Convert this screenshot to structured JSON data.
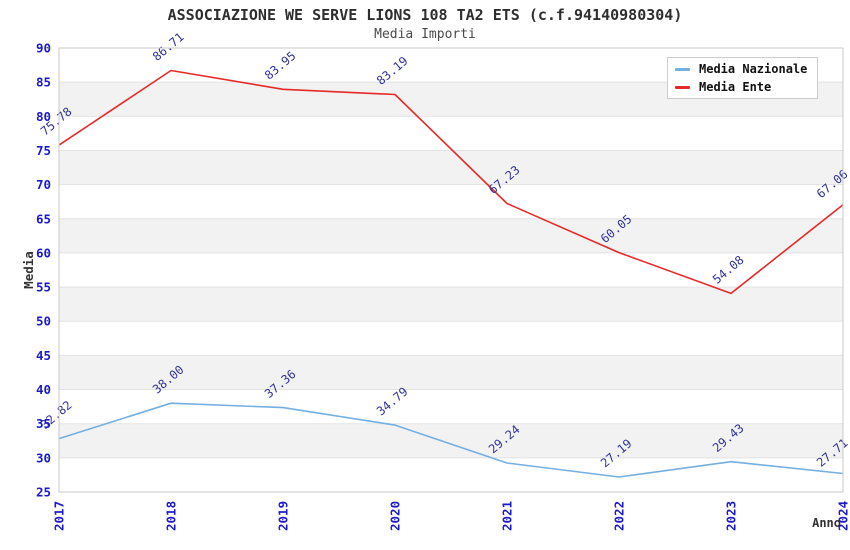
{
  "chart_data": {
    "type": "line",
    "title": "ASSOCIAZIONE WE SERVE LIONS 108 TA2 ETS (c.f.94140980304)",
    "subtitle": "Media Importi",
    "xlabel": "Anno",
    "ylabel": "Media",
    "categories": [
      "2017",
      "2018",
      "2019",
      "2020",
      "2021",
      "2022",
      "2023",
      "2024"
    ],
    "series": [
      {
        "name": "Media Nazionale",
        "color": "#74afe2",
        "values": [
          32.82,
          38.0,
          37.36,
          34.79,
          29.24,
          27.19,
          29.43,
          27.71
        ]
      },
      {
        "name": "Media Ente",
        "color": "#e62929",
        "values": [
          75.78,
          86.71,
          83.95,
          83.19,
          67.23,
          60.05,
          54.08,
          67.06
        ]
      }
    ],
    "ylim": [
      25,
      90
    ],
    "ytick_step": 5,
    "yticks": [
      90,
      85,
      80,
      75,
      70,
      65,
      60,
      55,
      50,
      45,
      40,
      35,
      30,
      25
    ],
    "value_decimals": 2,
    "grid": true,
    "legend_position": "top-right",
    "band_fill": "#f2f2f2",
    "gridline_color": "#e3e3e3",
    "border_color": "#c9c9c9",
    "tick_label_color": "#1a1acd",
    "data_label_color": "#333399",
    "axis_title_color": "#333333"
  }
}
